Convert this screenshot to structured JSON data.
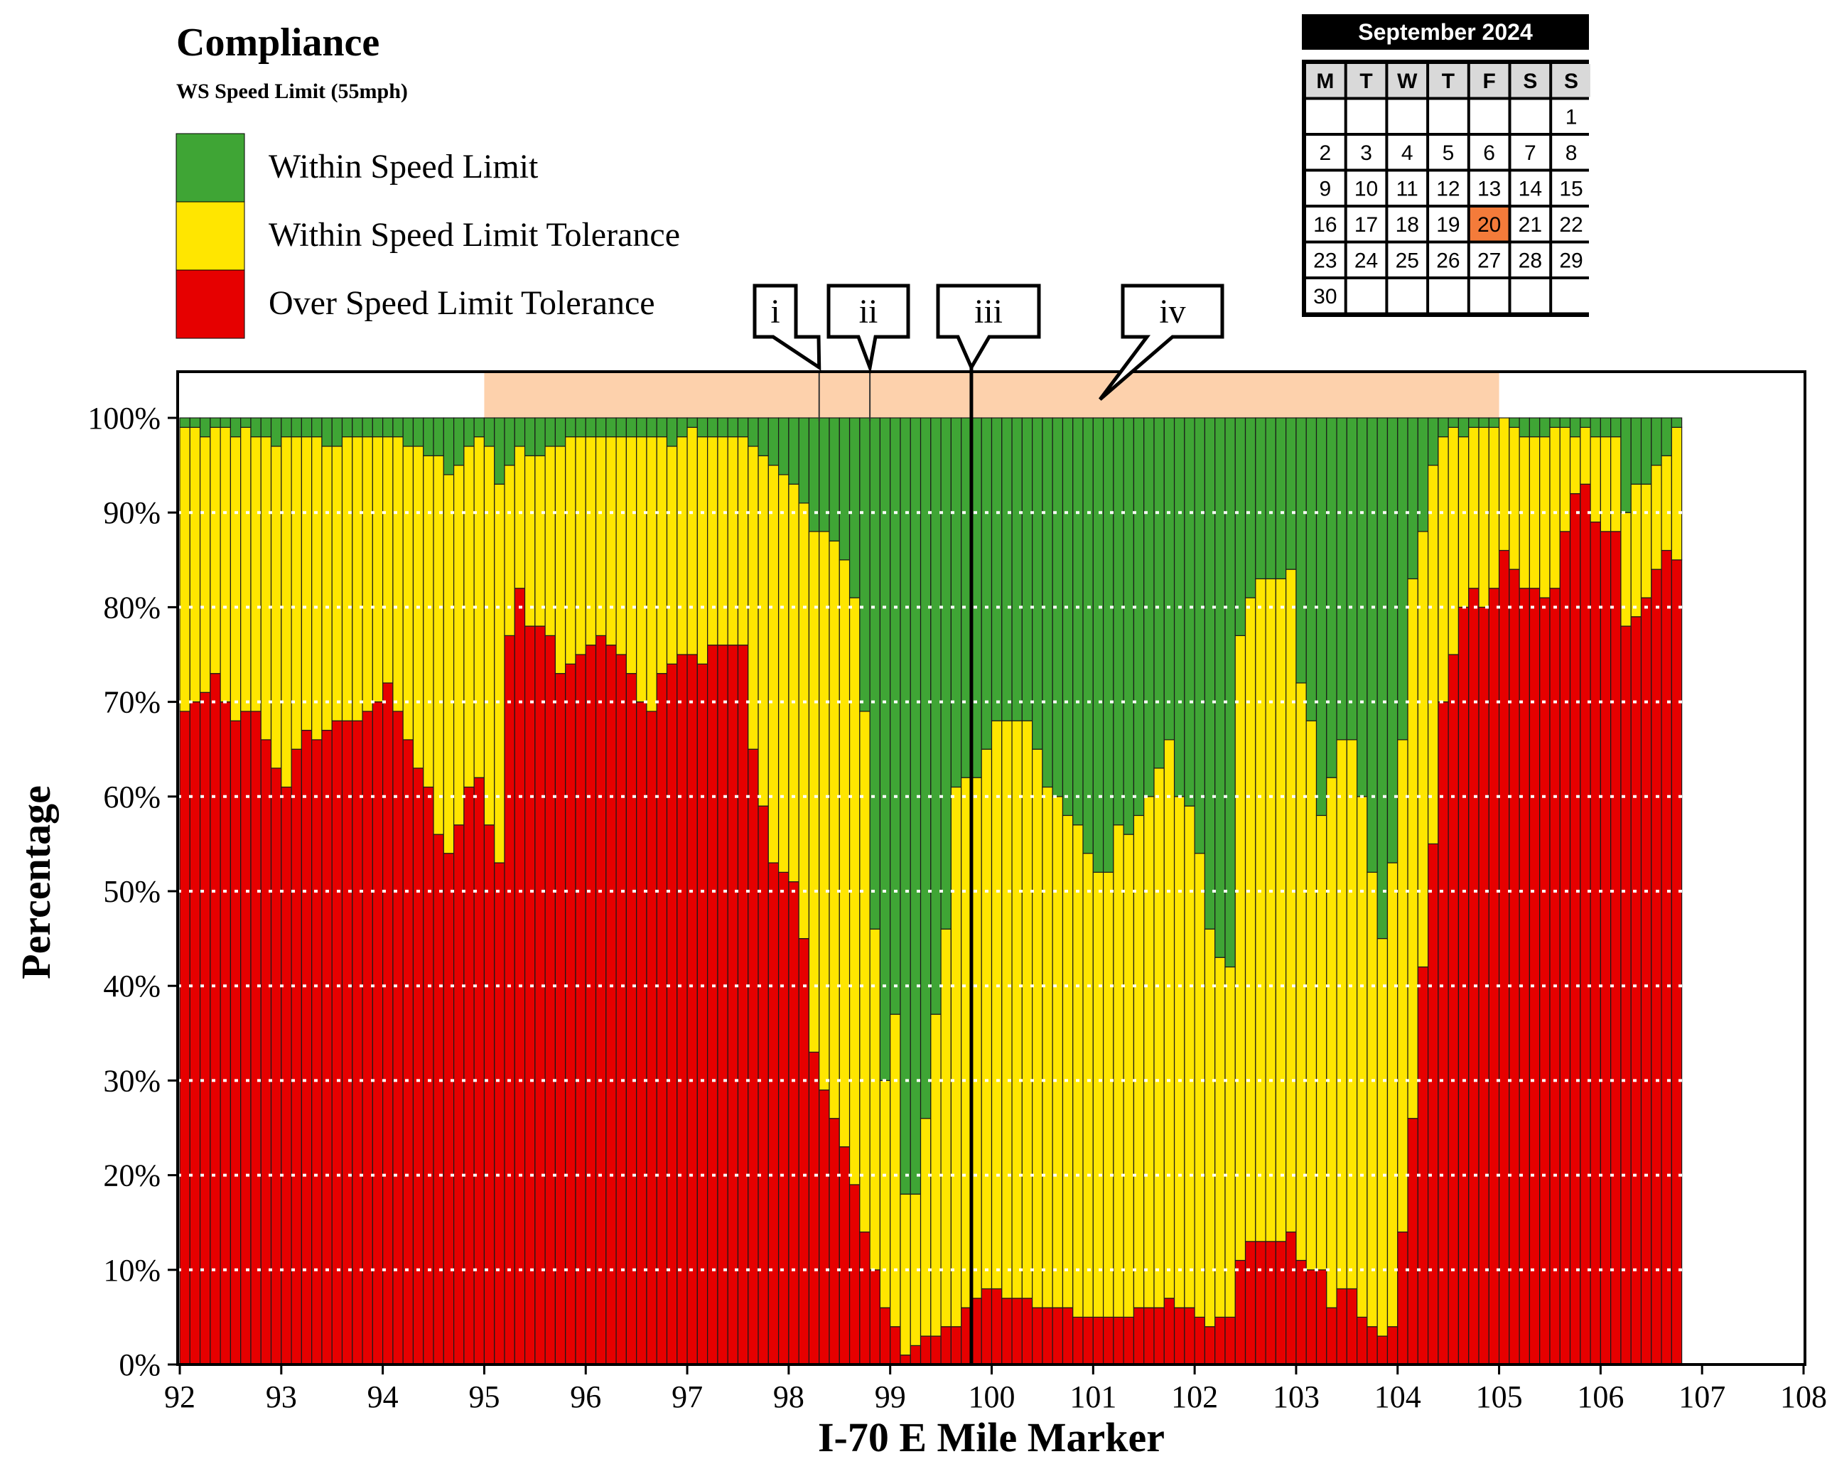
{
  "legend": {
    "title": "Compliance",
    "subtitle": "WS Speed Limit (55mph)",
    "items": [
      {
        "label": "Within Speed Limit",
        "color": "#3fa535"
      },
      {
        "label": "Within Speed Limit Tolerance",
        "color": "#ffe600"
      },
      {
        "label": "Over Speed Limit Tolerance",
        "color": "#e60000"
      }
    ]
  },
  "calendar": {
    "title": "September 2024",
    "weekdays": [
      "M",
      "T",
      "W",
      "T",
      "F",
      "S",
      "S"
    ],
    "start_offset": 6,
    "days_in_month": 30,
    "highlight_day": 20,
    "highlight_color": "#f47b3a"
  },
  "annotations": [
    {
      "label": "i",
      "mile": 98.3
    },
    {
      "label": "ii",
      "mile": 98.8
    },
    {
      "label": "iii",
      "mile": 99.8
    },
    {
      "label": "iv",
      "mile": 100.9
    }
  ],
  "chart_data": {
    "type": "bar",
    "stacked": true,
    "xlabel": "I-70 E Mile Marker",
    "ylabel": "Percentage",
    "xlim": [
      92,
      108
    ],
    "ylim": [
      0,
      100
    ],
    "x_ticks": [
      "92",
      "93",
      "94",
      "95",
      "96",
      "97",
      "98",
      "99",
      "100",
      "101",
      "102",
      "103",
      "104",
      "105",
      "106",
      "107",
      "108"
    ],
    "y_ticks": [
      "0%",
      "10%",
      "20%",
      "30%",
      "40%",
      "50%",
      "60%",
      "70%",
      "80%",
      "90%",
      "100%"
    ],
    "grid": "horizontal dotted",
    "shaded_region": {
      "x_start": 95,
      "x_end": 105,
      "color": "#fdd1ac"
    },
    "vertical_line_mile": 99.8,
    "bar_width_miles": 0.1,
    "x_start": 92.05,
    "series": [
      {
        "name": "Over Speed Limit Tolerance",
        "color": "#e60000",
        "values": [
          69,
          70,
          71,
          73,
          70,
          68,
          69,
          69,
          66,
          63,
          61,
          65,
          67,
          66,
          67,
          68,
          68,
          68,
          69,
          70,
          72,
          69,
          66,
          63,
          61,
          56,
          54,
          57,
          61,
          62,
          57,
          53,
          77,
          82,
          78,
          78,
          77,
          73,
          74,
          75,
          76,
          77,
          76,
          75,
          73,
          70,
          69,
          73,
          74,
          75,
          75,
          74,
          76,
          76,
          76,
          76,
          65,
          59,
          53,
          52,
          51,
          45,
          33,
          29,
          26,
          23,
          19,
          14,
          10,
          6,
          4,
          1,
          2,
          3,
          3,
          4,
          4,
          6,
          7,
          8,
          8,
          7,
          7,
          7,
          6,
          6,
          6,
          6,
          5,
          5,
          5,
          5,
          5,
          5,
          6,
          6,
          6,
          7,
          6,
          6,
          5,
          4,
          5,
          5,
          11,
          13,
          13,
          13,
          13,
          14,
          11,
          10,
          10,
          6,
          8,
          8,
          5,
          4,
          3,
          4,
          14,
          26,
          42,
          55,
          70,
          75,
          80,
          82,
          80,
          82,
          86,
          84,
          82,
          82,
          81,
          82,
          88,
          92,
          93,
          89,
          88,
          88,
          78,
          79,
          81,
          84,
          86,
          85
        ]
      },
      {
        "name": "Within Speed Limit Tolerance",
        "color": "#ffe600",
        "values": [
          30,
          29,
          27,
          26,
          29,
          30,
          30,
          29,
          32,
          34,
          37,
          33,
          31,
          32,
          30,
          29,
          30,
          30,
          29,
          28,
          26,
          29,
          31,
          34,
          35,
          40,
          40,
          38,
          36,
          36,
          40,
          40,
          18,
          15,
          18,
          18,
          20,
          24,
          24,
          23,
          22,
          21,
          22,
          23,
          25,
          28,
          29,
          25,
          23,
          23,
          24,
          24,
          22,
          22,
          22,
          22,
          32,
          37,
          42,
          42,
          42,
          46,
          55,
          59,
          61,
          62,
          62,
          55,
          36,
          24,
          33,
          17,
          16,
          23,
          34,
          42,
          57,
          56,
          55,
          57,
          60,
          61,
          61,
          61,
          59,
          55,
          54,
          52,
          52,
          49,
          47,
          47,
          52,
          51,
          52,
          54,
          57,
          59,
          54,
          53,
          49,
          42,
          38,
          37,
          66,
          68,
          70,
          70,
          70,
          70,
          61,
          58,
          48,
          56,
          58,
          58,
          55,
          48,
          42,
          49,
          52,
          57,
          46,
          40,
          28,
          24,
          18,
          17,
          19,
          17,
          14,
          15,
          16,
          16,
          17,
          17,
          11,
          6,
          6,
          9,
          10,
          10,
          12,
          14,
          12,
          11,
          10,
          14
        ]
      },
      {
        "name": "Within Speed Limit",
        "color": "#3fa535",
        "values": [
          1,
          1,
          2,
          1,
          1,
          2,
          1,
          2,
          2,
          3,
          2,
          2,
          2,
          2,
          3,
          3,
          2,
          2,
          2,
          2,
          2,
          2,
          3,
          3,
          4,
          4,
          6,
          5,
          3,
          2,
          3,
          7,
          5,
          3,
          4,
          4,
          3,
          3,
          2,
          2,
          2,
          2,
          2,
          2,
          2,
          2,
          2,
          2,
          3,
          2,
          1,
          2,
          2,
          2,
          2,
          2,
          3,
          4,
          5,
          6,
          7,
          9,
          12,
          12,
          13,
          15,
          19,
          31,
          54,
          70,
          63,
          82,
          82,
          74,
          63,
          54,
          39,
          38,
          38,
          35,
          32,
          32,
          32,
          32,
          35,
          39,
          40,
          42,
          43,
          46,
          48,
          48,
          43,
          44,
          42,
          40,
          37,
          34,
          40,
          41,
          46,
          54,
          57,
          58,
          23,
          19,
          17,
          17,
          17,
          16,
          28,
          32,
          42,
          38,
          34,
          34,
          40,
          48,
          55,
          47,
          34,
          17,
          12,
          5,
          2,
          1,
          2,
          1,
          1,
          1,
          0,
          1,
          2,
          2,
          2,
          1,
          1,
          2,
          1,
          2,
          2,
          2,
          10,
          7,
          7,
          5,
          4,
          1
        ]
      }
    ]
  }
}
